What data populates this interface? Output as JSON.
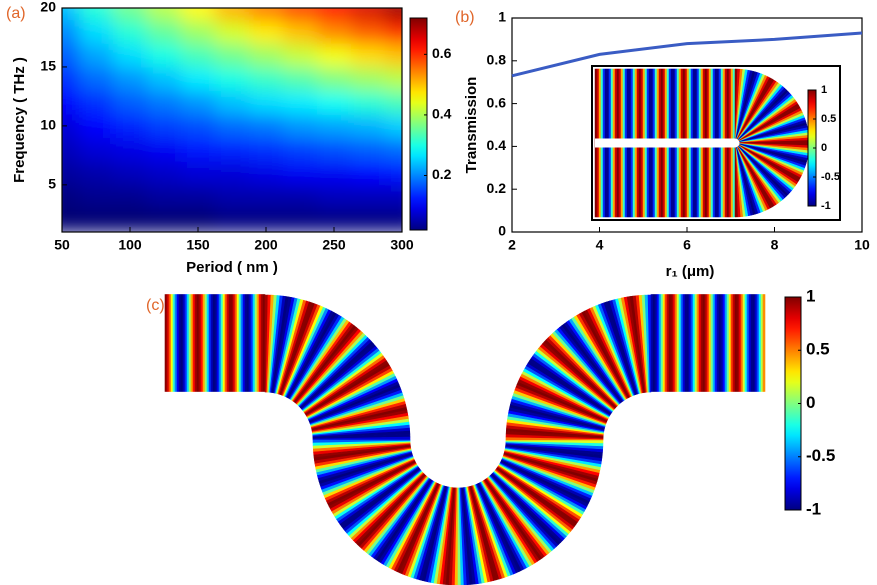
{
  "chart_data": [
    {
      "type": "heatmap",
      "panel_label": "(a)",
      "x_label": "Period ( nm )",
      "y_label": "Frequency ( THz )",
      "x": [
        50,
        75,
        100,
        125,
        150,
        175,
        200,
        225,
        250,
        275,
        300
      ],
      "y": [
        2,
        4,
        6,
        8,
        10,
        12,
        14,
        16,
        18,
        20
      ],
      "z": [
        [
          0.01,
          0.01,
          0.01,
          0.01,
          0.01,
          0.02,
          0.02,
          0.02,
          0.02,
          0.02,
          0.02
        ],
        [
          0.02,
          0.03,
          0.03,
          0.04,
          0.04,
          0.05,
          0.05,
          0.05,
          0.06,
          0.06,
          0.06
        ],
        [
          0.04,
          0.05,
          0.06,
          0.07,
          0.08,
          0.08,
          0.09,
          0.1,
          0.1,
          0.11,
          0.12
        ],
        [
          0.06,
          0.08,
          0.09,
          0.1,
          0.12,
          0.13,
          0.14,
          0.15,
          0.16,
          0.17,
          0.18
        ],
        [
          0.08,
          0.11,
          0.13,
          0.15,
          0.16,
          0.18,
          0.19,
          0.21,
          0.22,
          0.23,
          0.25
        ],
        [
          0.11,
          0.14,
          0.17,
          0.19,
          0.21,
          0.24,
          0.26,
          0.27,
          0.29,
          0.31,
          0.33
        ],
        [
          0.14,
          0.18,
          0.21,
          0.24,
          0.27,
          0.3,
          0.32,
          0.34,
          0.37,
          0.39,
          0.41
        ],
        [
          0.17,
          0.22,
          0.26,
          0.3,
          0.33,
          0.36,
          0.39,
          0.42,
          0.45,
          0.48,
          0.5
        ],
        [
          0.2,
          0.26,
          0.31,
          0.35,
          0.39,
          0.43,
          0.47,
          0.5,
          0.54,
          0.57,
          0.6
        ],
        [
          0.24,
          0.31,
          0.36,
          0.41,
          0.46,
          0.51,
          0.55,
          0.59,
          0.63,
          0.66,
          0.7
        ]
      ],
      "xlim": [
        50,
        300
      ],
      "ylim": [
        1,
        20
      ],
      "xticks": [
        50,
        100,
        150,
        200,
        250,
        300
      ],
      "yticks": [
        5,
        10,
        15,
        20
      ],
      "clim": [
        0.02,
        0.72
      ],
      "cticks": [
        0.2,
        0.4,
        0.6
      ],
      "colormap": "jet"
    },
    {
      "type": "line",
      "panel_label": "(b)",
      "x_label": "r₁ (μm)",
      "y_label": "Transmission",
      "x": [
        2,
        4,
        6,
        8,
        10
      ],
      "values": [
        0.73,
        0.83,
        0.88,
        0.9,
        0.93
      ],
      "color": "#3a5cc4",
      "xlim": [
        2,
        10
      ],
      "ylim": [
        0,
        1
      ],
      "xticks": [
        2,
        4,
        6,
        8,
        10
      ],
      "yticks": [
        0,
        0.2,
        0.4,
        0.6,
        0.8,
        1
      ],
      "inset": {
        "type": "field",
        "clim": [
          -1,
          1
        ],
        "cticks": [
          1,
          0.5,
          0,
          -0.5,
          -1
        ],
        "colormap": "jet"
      }
    },
    {
      "type": "field",
      "panel_label": "(c)",
      "clim": [
        -1,
        1
      ],
      "cticks": [
        1,
        0.5,
        0,
        -0.5,
        -1
      ],
      "colormap": "jet"
    }
  ]
}
